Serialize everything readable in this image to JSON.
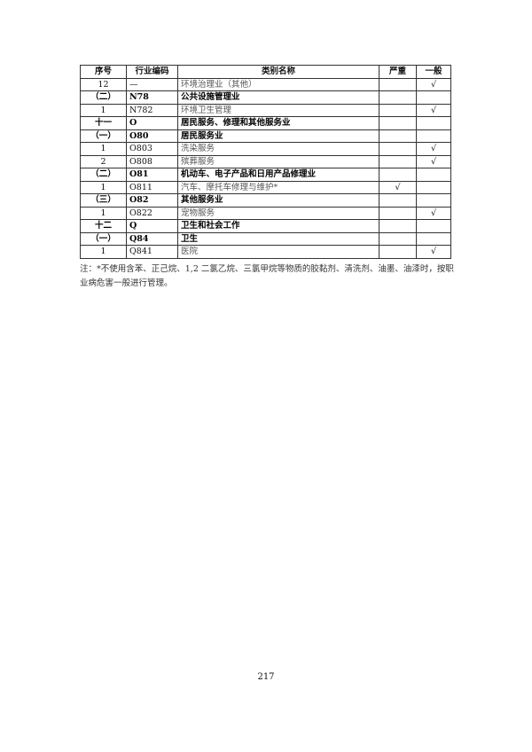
{
  "table": {
    "headers": [
      "序号",
      "行业编码",
      "类别名称",
      "严重",
      "一般"
    ],
    "rows": [
      {
        "no": "12",
        "code": "—",
        "name": "环境治理业（其他）",
        "severe": "",
        "general": "√",
        "bold": false
      },
      {
        "no": "（二）",
        "code": "N78",
        "name": "公共设施管理业",
        "severe": "",
        "general": "",
        "bold": true
      },
      {
        "no": "1",
        "code": "N782",
        "name": "环境卫生管理",
        "severe": "",
        "general": "√",
        "bold": false
      },
      {
        "no": "十一",
        "code": "O",
        "name": "居民服务、修理和其他服务业",
        "severe": "",
        "general": "",
        "bold": true
      },
      {
        "no": "（一）",
        "code": "O80",
        "name": "居民服务业",
        "severe": "",
        "general": "",
        "bold": true
      },
      {
        "no": "1",
        "code": "O803",
        "name": "洗染服务",
        "severe": "",
        "general": "√",
        "bold": false
      },
      {
        "no": "2",
        "code": "O808",
        "name": "殡葬服务",
        "severe": "",
        "general": "√",
        "bold": false
      },
      {
        "no": "（二）",
        "code": "O81",
        "name": "机动车、电子产品和日用产品修理业",
        "severe": "",
        "general": "",
        "bold": true
      },
      {
        "no": "1",
        "code": "O811",
        "name": "汽车、摩托车修理与维护*",
        "severe": "√",
        "general": "",
        "bold": false
      },
      {
        "no": "（三）",
        "code": "O82",
        "name": "其他服务业",
        "severe": "",
        "general": "",
        "bold": true
      },
      {
        "no": "1",
        "code": "O822",
        "name": "宠物服务",
        "severe": "",
        "general": "√",
        "bold": false
      },
      {
        "no": "十二",
        "code": "Q",
        "name": "卫生和社会工作",
        "severe": "",
        "general": "",
        "bold": true
      },
      {
        "no": "（一）",
        "code": "Q84",
        "name": "卫生",
        "severe": "",
        "general": "",
        "bold": true
      },
      {
        "no": "1",
        "code": "Q841",
        "name": "医院",
        "severe": "",
        "general": "√",
        "bold": false
      }
    ]
  },
  "note": "注：*不使用含苯、正己烷、1,2 二氯乙烷、三氯甲烷等物质的胶黏剂、清洗剂、油墨、油漆时，按职业病危害一般进行管理。",
  "page_number": "217"
}
